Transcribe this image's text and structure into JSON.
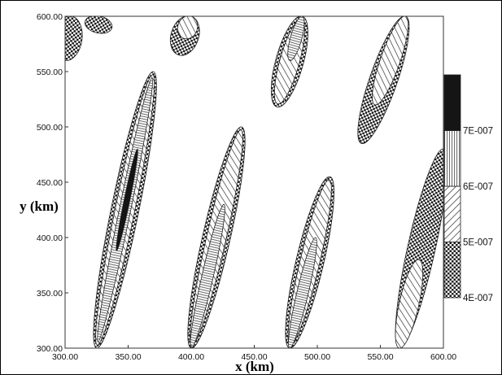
{
  "chart_data": {
    "type": "contour",
    "title": "",
    "xlabel": "x (km)",
    "ylabel": "y (km)",
    "xlim": [
      300,
      600
    ],
    "ylim": [
      300,
      600
    ],
    "x_ticks": [
      "300.00",
      "350.00",
      "400.00",
      "450.00",
      "500.00",
      "550.00",
      "600.00"
    ],
    "y_ticks": [
      "300.00",
      "350.00",
      "400.00",
      "450.00",
      "500.00",
      "550.00",
      "600.00"
    ],
    "grid": false,
    "colorbar": {
      "position": "right",
      "levels": [
        {
          "label": "4E-007",
          "fill": "checker"
        },
        {
          "label": "5E-007",
          "fill": "hatch"
        },
        {
          "label": "6E-007",
          "fill": "vertical-lines"
        },
        {
          "label": "7E-007",
          "fill": "black"
        }
      ]
    },
    "bands": [
      {
        "id": "band-a",
        "from": [
          325,
          300
        ],
        "to": [
          370,
          550
        ],
        "peak_level": "7E-007",
        "peak_range": [
          388,
          480
        ]
      },
      {
        "id": "band-b",
        "from": [
          400,
          300
        ],
        "to": [
          440,
          500
        ],
        "peak_level": "6E-007",
        "peak_range": [
          300,
          430
        ]
      },
      {
        "id": "band-c",
        "from": [
          478,
          300
        ],
        "to": [
          510,
          455
        ],
        "peak_level": "6E-007",
        "peak_range": [
          300,
          400
        ]
      },
      {
        "id": "band-d",
        "from": [
          565,
          300
        ],
        "to": [
          600,
          480
        ],
        "peak_level": "5E-007",
        "peak_range": [
          300,
          380
        ]
      },
      {
        "id": "band-e",
        "from": [
          390,
          565
        ],
        "to": [
          400,
          600
        ],
        "peak_level": "5E-007",
        "peak_range": [
          580,
          600
        ]
      },
      {
        "id": "band-f",
        "from": [
          468,
          518
        ],
        "to": [
          488,
          600
        ],
        "peak_level": "6E-007",
        "peak_range": [
          560,
          600
        ]
      },
      {
        "id": "band-g",
        "from": [
          535,
          485
        ],
        "to": [
          570,
          600
        ],
        "peak_level": "5E-007",
        "peak_range": [
          520,
          600
        ]
      },
      {
        "id": "band-h",
        "from": [
          300,
          560
        ],
        "to": [
          305,
          600
        ],
        "peak_level": "4E-007",
        "peak_range": [
          560,
          600
        ]
      },
      {
        "id": "band-i",
        "from": [
          325,
          585
        ],
        "to": [
          328,
          600
        ],
        "peak_level": "4E-007",
        "peak_range": [
          585,
          600
        ]
      }
    ]
  }
}
